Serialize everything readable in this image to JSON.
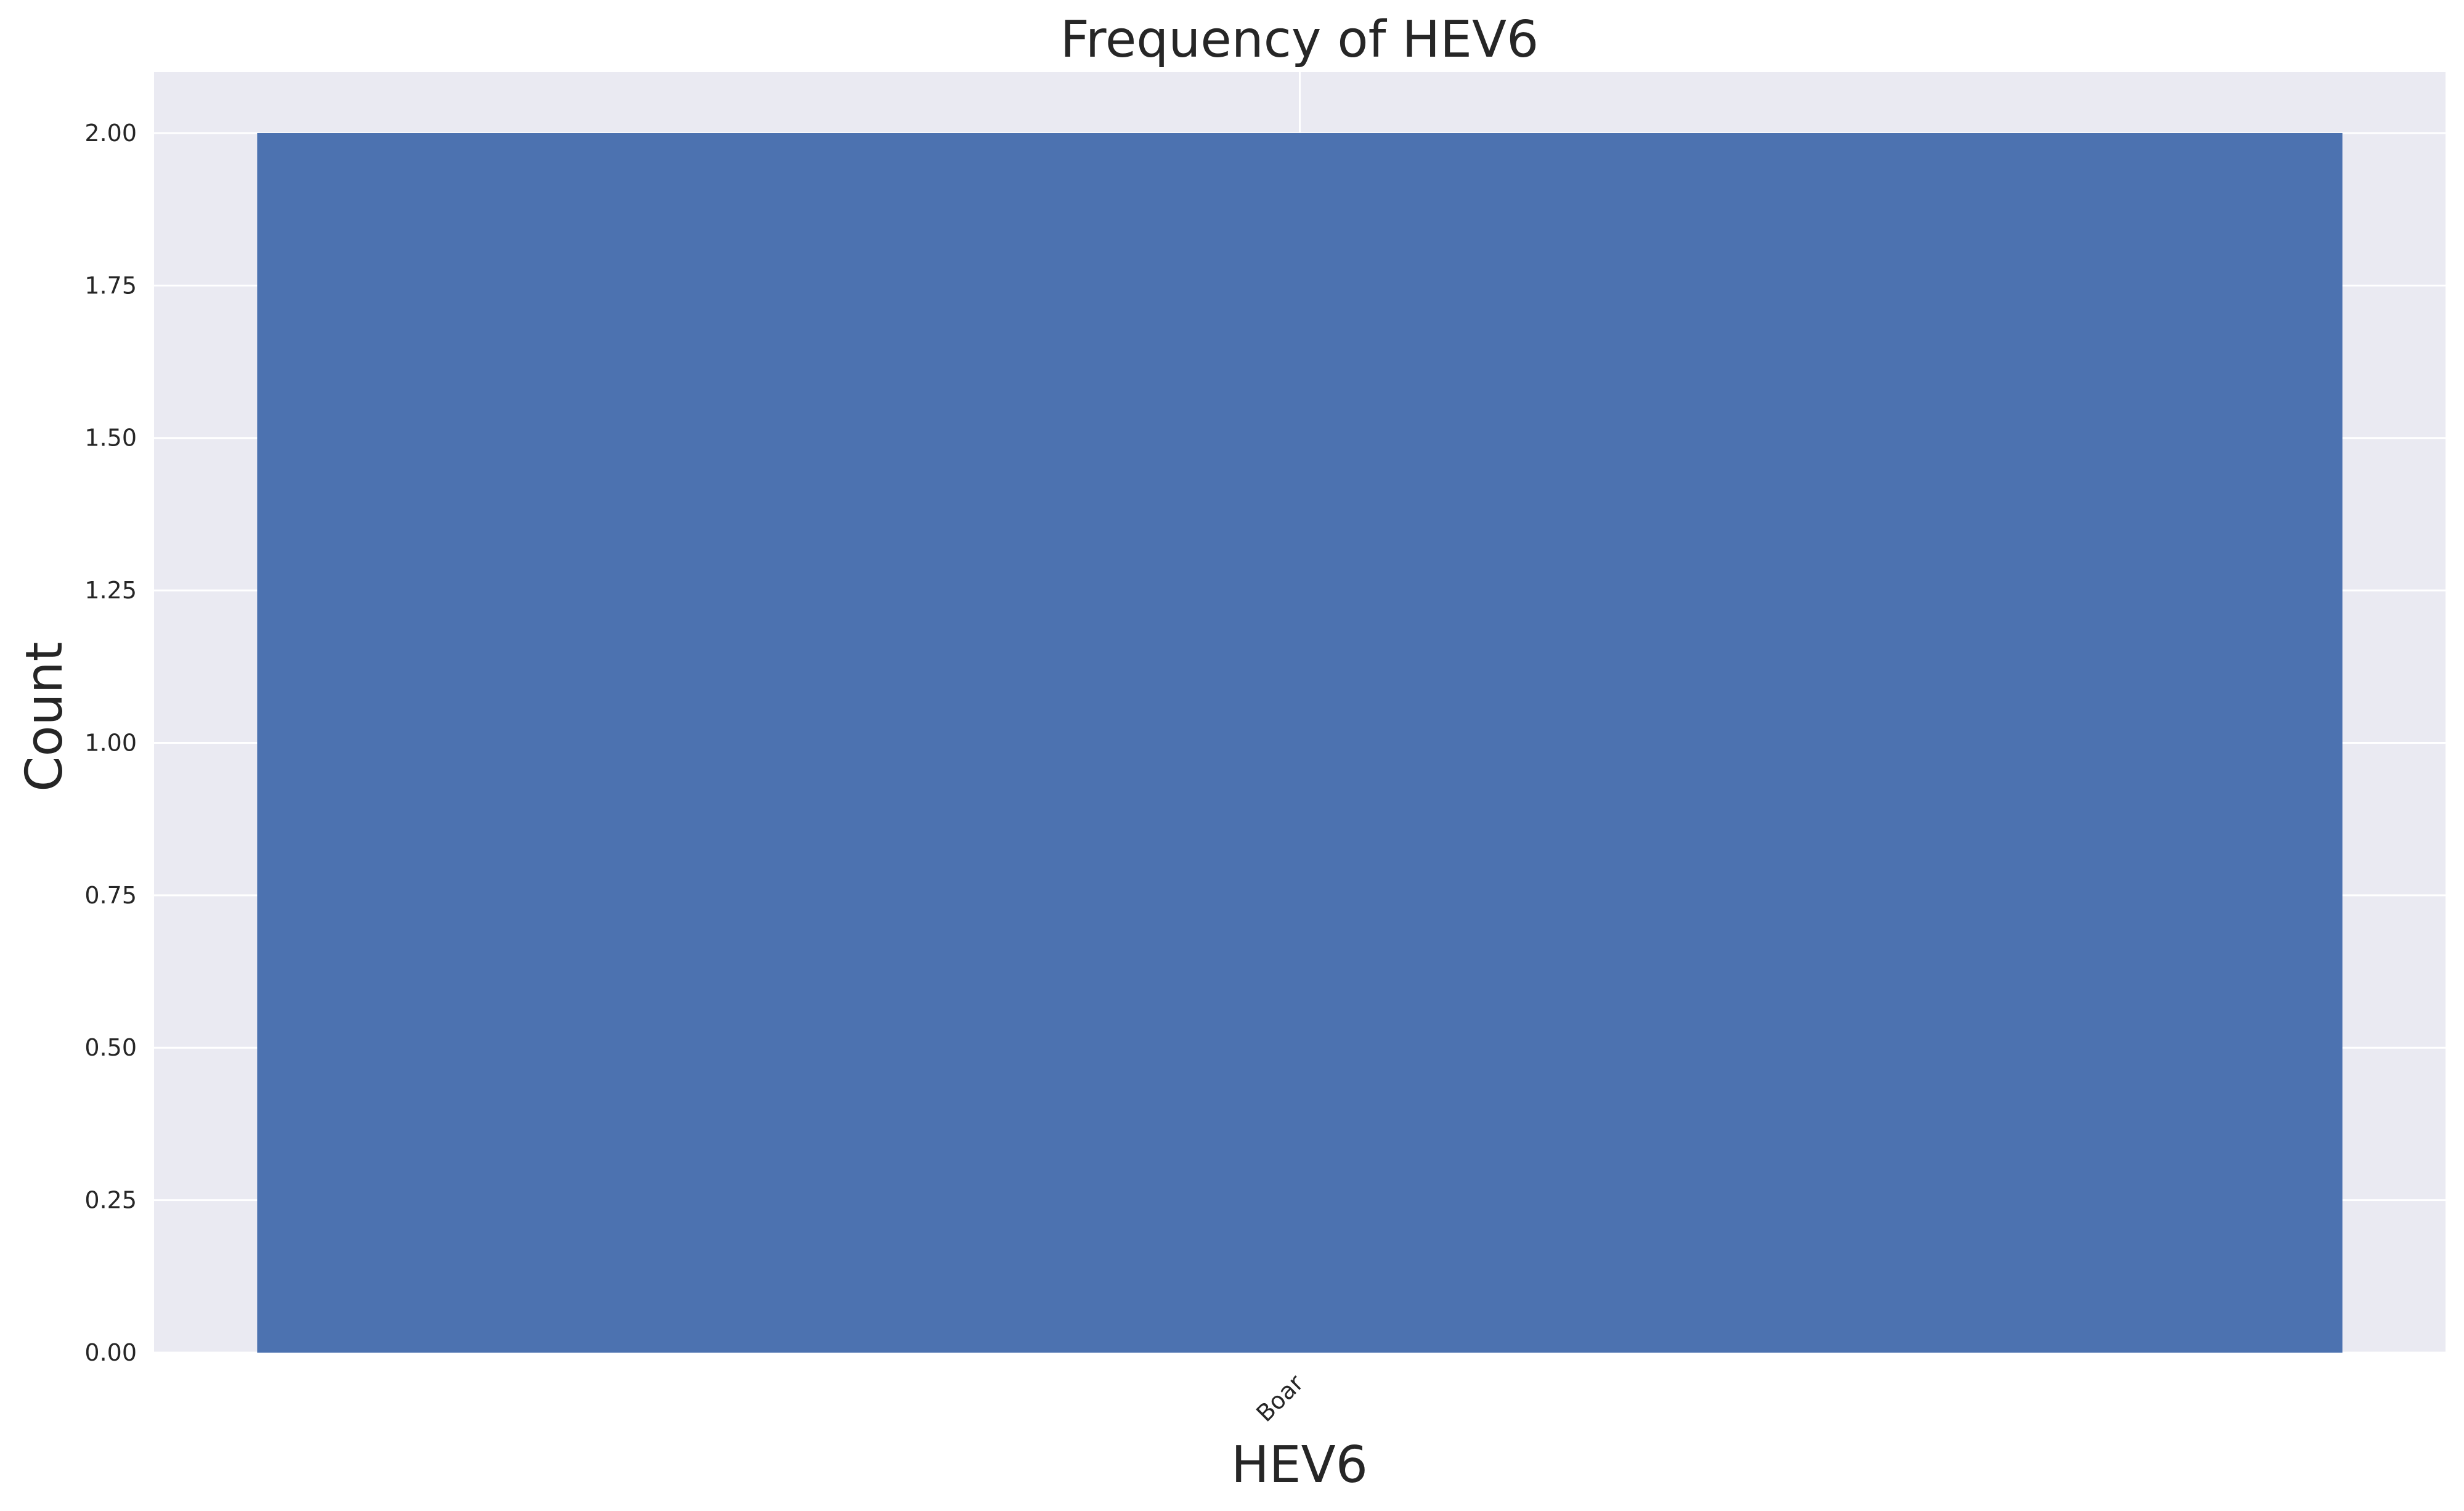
{
  "colors": {
    "plot_background": "#EAEAF2",
    "grid": "#FFFFFF",
    "bar": "#4C72B0"
  },
  "chart_data": {
    "type": "bar",
    "title": "Frequency of HEV6",
    "xlabel": "HEV6",
    "ylabel": "Count",
    "categories": [
      "Boar"
    ],
    "values": [
      2
    ],
    "ylim": [
      0,
      2.1
    ],
    "yticks": [
      "0.00",
      "0.25",
      "0.50",
      "0.75",
      "1.00",
      "1.25",
      "1.50",
      "1.75",
      "2.00"
    ],
    "xtick_rotation_deg": 45,
    "grid": true,
    "legend": false
  }
}
